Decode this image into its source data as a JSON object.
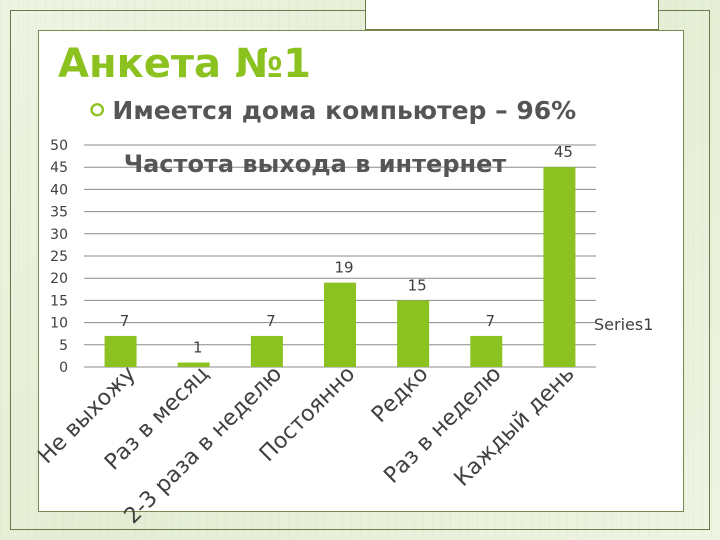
{
  "slide": {
    "title": "Анкета №1",
    "bullet_text": "Имеется дома компьютер – 96%",
    "bullet_icon": "circle-bullet-icon",
    "accent_color": "#8cc21f"
  },
  "chart_data": {
    "type": "bar",
    "title": "Частота выхода в интернет",
    "categories": [
      "Не выхожу",
      "Раз в месяц",
      "2-3 раза в неделю",
      "Постоянно",
      "Редко",
      "Раз в неделю",
      "Каждый день"
    ],
    "series": [
      {
        "name": "Series1",
        "values": [
          7,
          1,
          7,
          19,
          15,
          7,
          45
        ]
      }
    ],
    "ylim": [
      0,
      50
    ],
    "y_ticks": [
      "0",
      "5",
      "10",
      "15",
      "20",
      "25",
      "30",
      "35",
      "40",
      "45",
      "50"
    ],
    "grid": true,
    "legend": "right",
    "bar_color": "#8cc21f",
    "xlabel": "",
    "ylabel": ""
  }
}
